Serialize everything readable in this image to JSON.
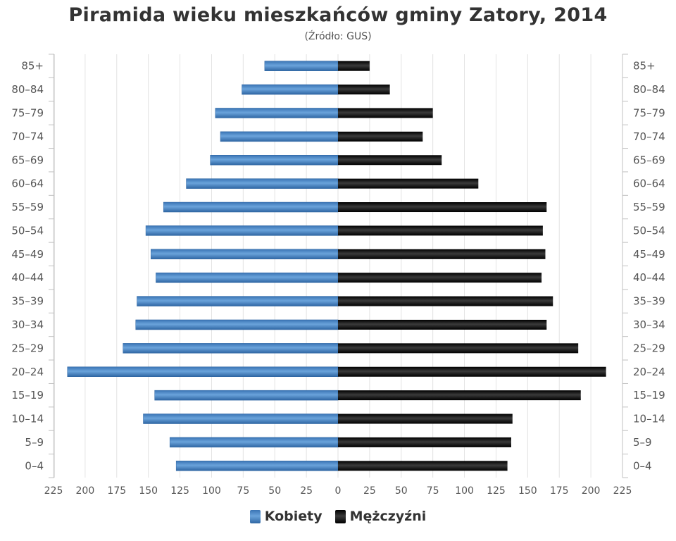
{
  "title": "Piramida wieku mieszkańców gminy Zatory, 2014",
  "subtitle": "(Źródło: GUS)",
  "legend": [
    {
      "label": "Kobiety",
      "color": "#4a86c5"
    },
    {
      "label": "Mężczyźni",
      "color": "#1a1a1a"
    }
  ],
  "chart_data": {
    "type": "bar",
    "orientation": "horizontal-population-pyramid",
    "categories": [
      "85+",
      "80–84",
      "75–79",
      "70–74",
      "65–69",
      "60–64",
      "55–59",
      "50–54",
      "45–49",
      "40–44",
      "35–39",
      "30–34",
      "25–29",
      "20–24",
      "15–19",
      "10–14",
      "5–9",
      "0–4"
    ],
    "series": [
      {
        "name": "Kobiety",
        "color": "#4a86c5",
        "direction": "left",
        "values": [
          58,
          76,
          97,
          93,
          101,
          120,
          138,
          152,
          148,
          144,
          159,
          160,
          170,
          214,
          145,
          154,
          133,
          128
        ]
      },
      {
        "name": "Mężczyźni",
        "color": "#1a1a1a",
        "direction": "right",
        "values": [
          25,
          41,
          75,
          67,
          82,
          111,
          165,
          162,
          164,
          161,
          170,
          165,
          190,
          212,
          192,
          138,
          137,
          134
        ]
      }
    ],
    "xlim": [
      -225,
      225
    ],
    "xticks": [
      225,
      200,
      175,
      150,
      125,
      100,
      75,
      50,
      25,
      0,
      25,
      50,
      75,
      100,
      125,
      150,
      175,
      200,
      225
    ],
    "grid": true,
    "legend_position": "bottom-center"
  }
}
